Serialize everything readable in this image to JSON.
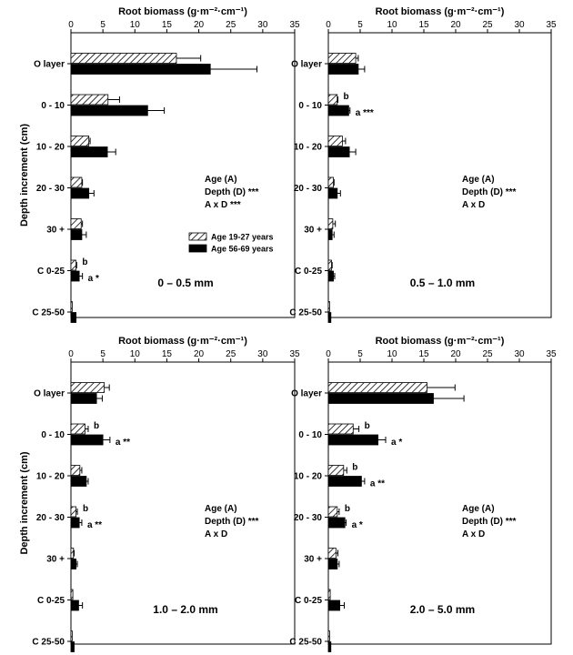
{
  "chart_data": [
    {
      "type": "bar",
      "orientation": "horizontal",
      "panel_label": "0 – 0.5 mm",
      "xlabel": "Root biomass (g·m⁻²·cm⁻¹)",
      "ylabel": "Depth increment (cm)",
      "xlim": [
        0,
        35
      ],
      "xticks": [
        "0",
        "5",
        "10",
        "15",
        "20",
        "25",
        "30",
        "35"
      ],
      "categories": [
        "O layer",
        "0 - 10",
        "10 - 20",
        "20 - 30",
        "30 +",
        "C 0-25",
        "C 25-50"
      ],
      "series": [
        {
          "name": "Age 19-27 years",
          "values": [
            16.5,
            5.8,
            2.8,
            1.7,
            1.6,
            0.8,
            0.2
          ],
          "errors": [
            3.8,
            1.8,
            0.2,
            0.1,
            0.2,
            0.1,
            0.0
          ]
        },
        {
          "name": "Age 56-69 years",
          "values": [
            21.8,
            12.0,
            5.7,
            2.8,
            1.7,
            1.3,
            0.8
          ],
          "errors": [
            7.3,
            2.6,
            1.3,
            0.8,
            0.7,
            0.5,
            0.0
          ]
        }
      ],
      "sig_letters": [
        {
          "category": "C 0-25",
          "series": 0,
          "text": "b"
        },
        {
          "category": "C 0-25",
          "series": 1,
          "text": "a *"
        }
      ],
      "stats": [
        "Age (A)",
        "Depth (D) ***",
        "A  x  D ***"
      ],
      "legend": {
        "position": "center-right",
        "entries": [
          "Age 19-27 years",
          "Age 56-69 years"
        ]
      }
    },
    {
      "type": "bar",
      "orientation": "horizontal",
      "panel_label": "0.5 – 1.0 mm",
      "xlabel": "Root biomass (g·m⁻²·cm⁻¹)",
      "xlim": [
        0,
        35
      ],
      "xticks": [
        "0",
        "5",
        "10",
        "15",
        "20",
        "25",
        "30",
        "35"
      ],
      "categories": [
        "O layer",
        "0 - 10",
        "10 - 20",
        "20 - 30",
        "30 +",
        "C 0-25",
        "C 25-50"
      ],
      "series": [
        {
          "name": "Age 19-27 years",
          "values": [
            4.3,
            1.4,
            2.2,
            0.8,
            0.7,
            0.5,
            0.2
          ],
          "errors": [
            0.4,
            0.1,
            0.5,
            0.1,
            0.4,
            0.1,
            0.0
          ]
        },
        {
          "name": "Age 56-69 years",
          "values": [
            4.7,
            3.2,
            3.3,
            1.4,
            0.6,
            0.8,
            0.4
          ],
          "errors": [
            1.0,
            0.2,
            1.0,
            0.5,
            0.3,
            0.2,
            0.0
          ]
        }
      ],
      "sig_letters": [
        {
          "category": "0 - 10",
          "series": 0,
          "text": "b"
        },
        {
          "category": "0 - 10",
          "series": 1,
          "text": "a ***"
        }
      ],
      "stats": [
        "Age (A)",
        "Depth (D) ***",
        "A  x  D"
      ]
    },
    {
      "type": "bar",
      "orientation": "horizontal",
      "panel_label": "1.0 – 2.0 mm",
      "xlabel": "Root biomass (g·m⁻²·cm⁻¹)",
      "ylabel": "Depth increment (cm)",
      "xlim": [
        0,
        35
      ],
      "xticks": [
        "0",
        "5",
        "10",
        "15",
        "20",
        "25",
        "30",
        "35"
      ],
      "categories": [
        "O layer",
        "0 - 10",
        "10 - 20",
        "20 - 30",
        "30 +",
        "C 0-25",
        "C 25-50"
      ],
      "series": [
        {
          "name": "Age 19-27 years",
          "values": [
            5.2,
            2.2,
            1.4,
            0.8,
            0.4,
            0.3,
            0.2
          ],
          "errors": [
            0.8,
            0.5,
            0.3,
            0.2,
            0.1,
            0.0,
            0.0
          ]
        },
        {
          "name": "Age 56-69 years",
          "values": [
            4.0,
            5.0,
            2.4,
            1.3,
            0.8,
            1.2,
            0.5
          ],
          "errors": [
            0.9,
            1.1,
            0.3,
            0.4,
            0.2,
            0.6,
            0.0
          ]
        }
      ],
      "sig_letters": [
        {
          "category": "0 - 10",
          "series": 0,
          "text": "b"
        },
        {
          "category": "0 - 10",
          "series": 1,
          "text": "a **"
        },
        {
          "category": "20 - 30",
          "series": 0,
          "text": "b"
        },
        {
          "category": "20 - 30",
          "series": 1,
          "text": "a **"
        }
      ],
      "stats": [
        "Age (A)",
        "Depth (D) ***",
        "A  x  D"
      ]
    },
    {
      "type": "bar",
      "orientation": "horizontal",
      "panel_label": "2.0 – 5.0 mm",
      "xlabel": "Root biomass (g·m⁻²·cm⁻¹)",
      "xlim": [
        0,
        35
      ],
      "xticks": [
        "0",
        "5",
        "10",
        "15",
        "20",
        "25",
        "30",
        "35"
      ],
      "categories": [
        "O layer",
        "0 - 10",
        "10 - 20",
        "20 - 30",
        "30 +",
        "C 0-25",
        "C 25-50"
      ],
      "series": [
        {
          "name": "Age 19-27 years",
          "values": [
            15.5,
            3.9,
            2.4,
            1.4,
            1.2,
            0.3,
            0.2
          ],
          "errors": [
            4.4,
            0.9,
            0.5,
            0.3,
            0.3,
            0.0,
            0.0
          ]
        },
        {
          "name": "Age 56-69 years",
          "values": [
            16.5,
            7.8,
            5.2,
            2.6,
            1.4,
            1.8,
            0.4
          ],
          "errors": [
            4.8,
            1.2,
            0.5,
            0.2,
            0.3,
            0.7,
            0.0
          ]
        }
      ],
      "sig_letters": [
        {
          "category": "0 - 10",
          "series": 0,
          "text": "b"
        },
        {
          "category": "0 - 10",
          "series": 1,
          "text": "a *"
        },
        {
          "category": "10 - 20",
          "series": 0,
          "text": "b"
        },
        {
          "category": "10 - 20",
          "series": 1,
          "text": "a **"
        },
        {
          "category": "20 - 30",
          "series": 0,
          "text": "b"
        },
        {
          "category": "20 - 30",
          "series": 1,
          "text": "a *"
        }
      ],
      "stats": [
        "Age (A)",
        "Depth (D) ***",
        "A  x  D"
      ]
    }
  ]
}
